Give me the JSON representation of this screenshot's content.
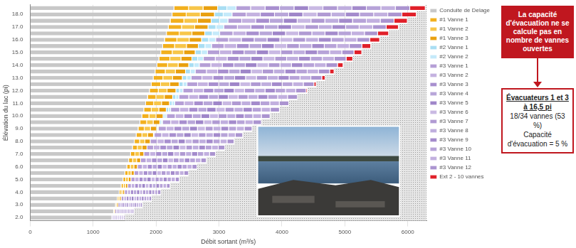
{
  "chart_data": {
    "type": "bar",
    "orientation": "horizontal",
    "stacked": true,
    "grid": true,
    "legend": "right",
    "x_label": "Débit sortant (m³/s)",
    "y_label": "Élévation du lac (pi)",
    "xlim": [
      0,
      6300
    ],
    "xticks": [
      0,
      1000,
      2000,
      3000,
      4000,
      5000,
      6000
    ],
    "categories": [
      null,
      "18.0",
      null,
      "17.0",
      null,
      "16.0",
      null,
      "15.0",
      null,
      "14.0",
      null,
      "13.0",
      null,
      "12.0",
      null,
      "11.0",
      null,
      "10.0",
      null,
      "9.0",
      null,
      "8.0",
      null,
      "7.0",
      null,
      "6.0",
      null,
      "5.0",
      null,
      "4.0",
      null,
      "3.0",
      null,
      "2.0"
    ],
    "series": [
      {
        "name": "Conduite de Delage",
        "color": "#c8c8c8",
        "values": [
          2290,
          2260,
          2230,
          2200,
          2170,
          2140,
          2110,
          2080,
          2050,
          2020,
          1990,
          1960,
          1930,
          1900,
          1870,
          1840,
          1810,
          1780,
          1750,
          1720,
          1690,
          1660,
          1630,
          1600,
          1570,
          1540,
          1510,
          1480,
          1450,
          1420,
          1390,
          1360,
          1330,
          1300
        ]
      },
      {
        "name": "#1 Vanne 1",
        "color": "#f2b01e",
        "values": [
          231,
          224,
          217,
          210,
          203,
          196,
          189,
          182,
          175,
          168,
          161,
          154,
          147,
          140,
          133,
          126,
          119,
          112,
          105,
          98,
          91,
          84,
          77,
          70,
          63,
          56,
          49,
          42,
          35,
          28,
          21,
          14,
          7,
          0
        ]
      },
      {
        "name": "#1 Vanne 2",
        "color": "#f7c64a",
        "values": [
          231,
          224,
          217,
          210,
          203,
          196,
          189,
          182,
          175,
          168,
          161,
          154,
          147,
          140,
          133,
          126,
          119,
          112,
          105,
          98,
          91,
          84,
          77,
          70,
          63,
          56,
          49,
          42,
          35,
          28,
          21,
          14,
          7,
          0
        ]
      },
      {
        "name": "#1 Vanne 3",
        "color": "#e9a010",
        "values": [
          231,
          224,
          217,
          210,
          203,
          196,
          189,
          182,
          175,
          168,
          161,
          154,
          147,
          140,
          133,
          126,
          119,
          112,
          105,
          98,
          91,
          84,
          77,
          70,
          63,
          56,
          49,
          42,
          35,
          28,
          21,
          14,
          7,
          0
        ]
      },
      {
        "name": "#2 Vanne 1",
        "color": "#a9def3",
        "values": [
          147,
          140,
          133,
          126,
          119,
          112,
          105,
          98,
          91,
          84,
          77,
          70,
          63,
          56,
          49,
          42,
          35,
          28,
          21,
          14,
          7,
          0,
          0,
          0,
          0,
          0,
          0,
          0,
          0,
          0,
          0,
          0,
          0,
          0
        ]
      },
      {
        "name": "#2 Vanne 2",
        "color": "#c5eafa",
        "values": [
          147,
          140,
          133,
          126,
          119,
          112,
          105,
          98,
          91,
          84,
          77,
          70,
          63,
          56,
          49,
          42,
          35,
          28,
          21,
          14,
          7,
          0,
          0,
          0,
          0,
          0,
          0,
          0,
          0,
          0,
          0,
          0,
          0,
          0
        ]
      },
      {
        "name": "#3 Vanne 1",
        "color": "#b59fd6",
        "values": [
          230,
          225,
          220,
          215,
          209,
          204,
          199,
          194,
          189,
          183,
          178,
          173,
          168,
          163,
          157,
          151,
          144,
          137,
          131,
          124,
          117,
          111,
          103,
          95,
          87,
          79,
          72,
          64,
          56,
          48,
          40,
          32,
          25,
          17
        ]
      },
      {
        "name": "#3 Vanne 2",
        "color": "#c4b2e0",
        "values": [
          230,
          225,
          220,
          215,
          209,
          204,
          199,
          194,
          189,
          183,
          178,
          173,
          168,
          163,
          157,
          151,
          144,
          137,
          131,
          124,
          117,
          111,
          103,
          95,
          87,
          79,
          72,
          64,
          56,
          48,
          40,
          32,
          25,
          17
        ]
      },
      {
        "name": "#3 Vanne 3",
        "color": "#a88fcf",
        "values": [
          230,
          225,
          220,
          215,
          209,
          204,
          199,
          194,
          189,
          183,
          178,
          173,
          168,
          163,
          157,
          151,
          144,
          137,
          131,
          124,
          117,
          111,
          103,
          95,
          87,
          79,
          72,
          64,
          56,
          48,
          40,
          32,
          25,
          17
        ]
      },
      {
        "name": "#3 Vanne 4",
        "color": "#b8a6d9",
        "values": [
          230,
          225,
          220,
          215,
          209,
          204,
          199,
          194,
          189,
          183,
          178,
          173,
          168,
          163,
          157,
          151,
          144,
          137,
          131,
          124,
          117,
          111,
          103,
          95,
          87,
          79,
          72,
          64,
          56,
          48,
          40,
          32,
          25,
          17
        ]
      },
      {
        "name": "#3 Vanne 5",
        "color": "#9f86c9",
        "values": [
          230,
          225,
          220,
          215,
          209,
          204,
          199,
          194,
          189,
          183,
          178,
          173,
          168,
          163,
          157,
          151,
          144,
          137,
          131,
          124,
          117,
          111,
          103,
          95,
          87,
          79,
          72,
          64,
          56,
          48,
          40,
          32,
          25,
          17
        ]
      },
      {
        "name": "#3 Vanne 6",
        "color": "#c9b9e3",
        "values": [
          230,
          225,
          220,
          215,
          209,
          204,
          199,
          194,
          189,
          183,
          178,
          173,
          168,
          163,
          157,
          151,
          144,
          137,
          131,
          124,
          117,
          111,
          103,
          95,
          87,
          79,
          72,
          64,
          56,
          48,
          40,
          32,
          25,
          17
        ]
      },
      {
        "name": "#3 Vanne 7",
        "color": "#b09ad3",
        "values": [
          230,
          225,
          220,
          215,
          209,
          204,
          199,
          194,
          189,
          183,
          178,
          173,
          168,
          163,
          157,
          151,
          144,
          137,
          131,
          124,
          117,
          111,
          103,
          95,
          87,
          79,
          72,
          64,
          56,
          48,
          40,
          32,
          25,
          17
        ]
      },
      {
        "name": "#3 Vanne 8",
        "color": "#bfaede",
        "values": [
          230,
          225,
          220,
          215,
          209,
          204,
          199,
          194,
          189,
          183,
          178,
          173,
          168,
          163,
          157,
          151,
          144,
          137,
          131,
          124,
          117,
          111,
          103,
          95,
          87,
          79,
          72,
          64,
          56,
          48,
          40,
          32,
          25,
          17
        ]
      },
      {
        "name": "#3 Vanne 9",
        "color": "#a48bcc",
        "values": [
          230,
          225,
          220,
          215,
          209,
          204,
          199,
          194,
          189,
          183,
          178,
          173,
          168,
          163,
          157,
          151,
          144,
          137,
          131,
          124,
          117,
          111,
          103,
          95,
          87,
          79,
          72,
          64,
          56,
          48,
          40,
          32,
          25,
          17
        ]
      },
      {
        "name": "#3 Vanne 10",
        "color": "#b7a3d8",
        "values": [
          230,
          225,
          220,
          215,
          209,
          204,
          199,
          194,
          189,
          183,
          178,
          173,
          168,
          163,
          157,
          151,
          144,
          137,
          131,
          124,
          117,
          111,
          103,
          95,
          87,
          79,
          72,
          64,
          56,
          48,
          40,
          32,
          25,
          17
        ]
      },
      {
        "name": "#3 Vanne 11",
        "color": "#c2b0df",
        "values": [
          230,
          225,
          220,
          215,
          209,
          204,
          199,
          194,
          189,
          183,
          178,
          173,
          168,
          163,
          157,
          151,
          144,
          137,
          131,
          124,
          117,
          111,
          103,
          95,
          87,
          79,
          72,
          64,
          56,
          48,
          40,
          32,
          25,
          17
        ]
      },
      {
        "name": "#3 Vanne 12",
        "color": "#ab94d0",
        "values": [
          230,
          225,
          220,
          215,
          209,
          204,
          199,
          194,
          189,
          183,
          178,
          173,
          168,
          163,
          157,
          151,
          144,
          137,
          131,
          124,
          117,
          111,
          103,
          95,
          87,
          79,
          72,
          64,
          56,
          48,
          40,
          32,
          25,
          17
        ]
      },
      {
        "name": "Ext 2 - 10 vannes",
        "color": "#e0202a",
        "values": [
          245,
          228,
          210,
          193,
          175,
          158,
          140,
          123,
          105,
          88,
          70,
          53,
          35,
          18,
          0,
          0,
          0,
          0,
          0,
          0,
          0,
          0,
          0,
          0,
          0,
          0,
          0,
          0,
          0,
          0,
          0,
          0,
          0,
          0
        ]
      }
    ],
    "annotations": {
      "note": "La capacité d'évacuation ne se calcule pas en nombre de vannes ouvertes",
      "callout_head": [
        "Évacuateurs 1 et 3",
        "à 16,5 pi"
      ],
      "callout_lines": [
        "18/34 vannes (53 %)",
        "Capacité d'évacuation = 5 %"
      ]
    }
  }
}
